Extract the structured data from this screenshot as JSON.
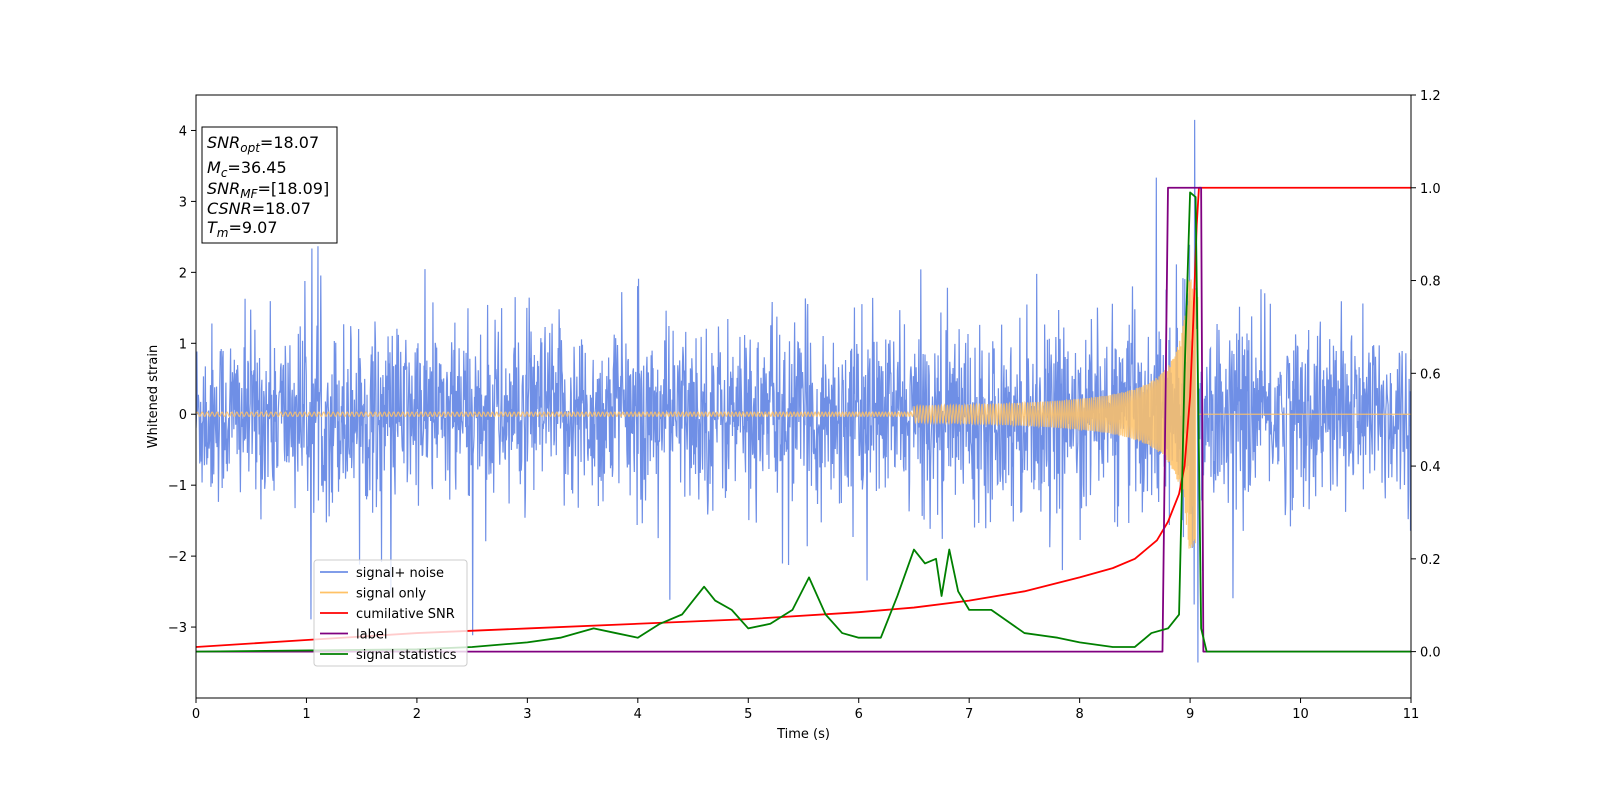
{
  "chart_data": {
    "type": "line",
    "xlabel": "Time (s)",
    "ylabel": "Whitened strain",
    "xlim": [
      0,
      11
    ],
    "ylim": [
      -4,
      4.5
    ],
    "y2lim": [
      -0.1,
      1.2
    ],
    "x_ticks": [
      "0",
      "1",
      "2",
      "3",
      "4",
      "5",
      "6",
      "7",
      "8",
      "9",
      "10",
      "11"
    ],
    "y_ticks": [
      "−3",
      "−2",
      "−1",
      "0",
      "1",
      "2",
      "3",
      "4"
    ],
    "y2_ticks": [
      "0.0",
      "0.2",
      "0.4",
      "0.6",
      "0.8",
      "1.0",
      "1.2"
    ],
    "grid": false,
    "legend_position": "lower-left",
    "colors": {
      "signal_noise": "#6f8fe6",
      "signal_only": "#ffc266",
      "cumulative_snr": "#ff0000",
      "label": "#800080",
      "signal_statistics": "#008000"
    },
    "info_box": {
      "snr_opt_label": "SNR",
      "snr_opt_sub": "opt",
      "snr_opt_value": "=18.07",
      "mc_label": "M",
      "mc_sub": "c",
      "mc_value": "=36.45",
      "snr_mf_label": "SNR",
      "snr_mf_sub": "MF",
      "snr_mf_value": "=[18.09]",
      "csnr_label": "CSNR",
      "csnr_value": "=18.07",
      "tm_label": "T",
      "tm_sub": "m",
      "tm_value": "=9.07"
    },
    "series": [
      {
        "name": "signal+ noise",
        "axis": "left",
        "style": "noise",
        "std": 0.62,
        "x_start": 0,
        "x_end": 11,
        "peak": 4.15,
        "peak_x": 9.04,
        "min": -3.6,
        "min_x": 9.07
      },
      {
        "name": "signal only",
        "axis": "left",
        "style": "chirp",
        "merger_x": 9.07,
        "max_amp": 1.9
      },
      {
        "name": "cumilative SNR",
        "axis": "right",
        "x": [
          0,
          1,
          2,
          3,
          4,
          5,
          6,
          6.5,
          7,
          7.5,
          8,
          8.3,
          8.5,
          8.7,
          8.8,
          8.9,
          8.95,
          9.0,
          9.03,
          9.06,
          9.08,
          11
        ],
        "y": [
          0.01,
          0.025,
          0.04,
          0.05,
          0.06,
          0.07,
          0.085,
          0.095,
          0.11,
          0.13,
          0.16,
          0.18,
          0.2,
          0.24,
          0.28,
          0.34,
          0.4,
          0.55,
          0.72,
          0.92,
          1.0,
          1.0
        ]
      },
      {
        "name": "label",
        "axis": "right",
        "x": [
          0,
          8.75,
          8.8,
          9.1,
          9.12,
          11
        ],
        "y": [
          0,
          0,
          1.0,
          1.0,
          0,
          0
        ]
      },
      {
        "name": "signal statistics",
        "axis": "right",
        "x": [
          0,
          2.0,
          2.5,
          3.0,
          3.3,
          3.6,
          3.8,
          4.0,
          4.2,
          4.4,
          4.5,
          4.6,
          4.7,
          4.85,
          5.0,
          5.2,
          5.4,
          5.55,
          5.7,
          5.85,
          6.0,
          6.2,
          6.35,
          6.5,
          6.6,
          6.7,
          6.75,
          6.82,
          6.9,
          7.0,
          7.2,
          7.5,
          7.8,
          8.0,
          8.3,
          8.5,
          8.65,
          8.8,
          8.9,
          8.95,
          9.0,
          9.05,
          9.1,
          9.15,
          11
        ],
        "y": [
          0.0,
          0.005,
          0.01,
          0.02,
          0.03,
          0.05,
          0.04,
          0.03,
          0.06,
          0.08,
          0.11,
          0.14,
          0.11,
          0.09,
          0.05,
          0.06,
          0.09,
          0.16,
          0.08,
          0.04,
          0.03,
          0.03,
          0.12,
          0.22,
          0.19,
          0.2,
          0.12,
          0.22,
          0.13,
          0.09,
          0.09,
          0.04,
          0.03,
          0.02,
          0.01,
          0.01,
          0.04,
          0.05,
          0.08,
          0.6,
          0.99,
          0.98,
          0.05,
          0.0,
          0.0
        ]
      }
    ]
  }
}
